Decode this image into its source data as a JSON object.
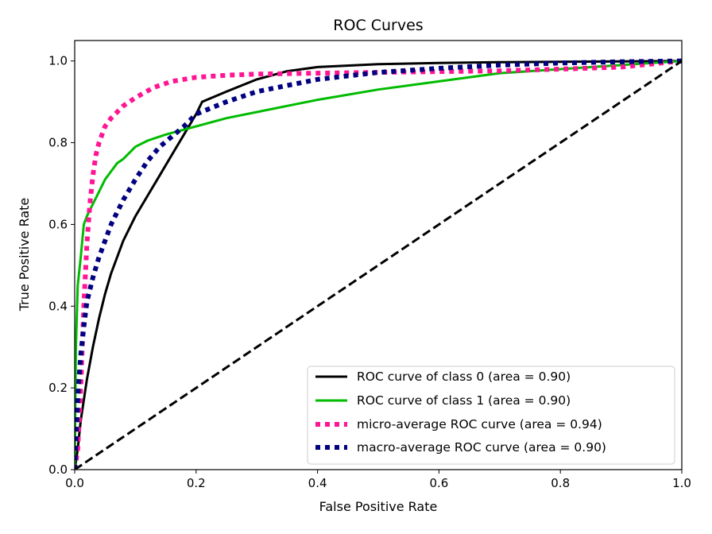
{
  "chart_data": {
    "type": "line",
    "title": "ROC Curves",
    "xlabel": "False Positive Rate",
    "ylabel": "True Positive Rate",
    "xlim": [
      0.0,
      1.0
    ],
    "ylim": [
      0.0,
      1.05
    ],
    "xticks": [
      0.0,
      0.2,
      0.4,
      0.6,
      0.8,
      1.0
    ],
    "xtick_labels": [
      "0.0",
      "0.2",
      "0.4",
      "0.6",
      "0.8",
      "1.0"
    ],
    "yticks": [
      0.0,
      0.2,
      0.4,
      0.6,
      0.8,
      1.0
    ],
    "ytick_labels": [
      "0.0",
      "0.2",
      "0.4",
      "0.6",
      "0.8",
      "1.0"
    ],
    "grid": false,
    "legend_position": "lower-right",
    "series": [
      {
        "name": "ROC curve of class 0 (area = 0.90)",
        "color": "#000000",
        "style": "solid",
        "x": [
          0.0,
          0.005,
          0.01,
          0.02,
          0.03,
          0.04,
          0.05,
          0.06,
          0.08,
          0.1,
          0.12,
          0.14,
          0.16,
          0.18,
          0.2,
          0.21,
          0.25,
          0.3,
          0.35,
          0.4,
          0.5,
          0.6,
          0.7,
          0.8,
          0.9,
          1.0
        ],
        "y": [
          0.0,
          0.05,
          0.12,
          0.22,
          0.3,
          0.37,
          0.43,
          0.48,
          0.56,
          0.62,
          0.67,
          0.72,
          0.77,
          0.82,
          0.87,
          0.9,
          0.925,
          0.955,
          0.975,
          0.985,
          0.992,
          0.995,
          0.997,
          0.998,
          0.999,
          1.0
        ]
      },
      {
        "name": "ROC curve of class 1 (area = 0.90)",
        "color": "#00bb00",
        "style": "solid",
        "x": [
          0.0,
          0.002,
          0.005,
          0.01,
          0.015,
          0.02,
          0.03,
          0.04,
          0.05,
          0.06,
          0.07,
          0.08,
          0.1,
          0.12,
          0.15,
          0.2,
          0.25,
          0.3,
          0.4,
          0.5,
          0.6,
          0.7,
          0.8,
          0.9,
          1.0
        ],
        "y": [
          0.0,
          0.3,
          0.45,
          0.52,
          0.6,
          0.62,
          0.65,
          0.68,
          0.71,
          0.73,
          0.75,
          0.76,
          0.79,
          0.805,
          0.82,
          0.84,
          0.86,
          0.875,
          0.905,
          0.93,
          0.95,
          0.97,
          0.98,
          0.99,
          1.0
        ]
      },
      {
        "name": "micro-average ROC curve (area = 0.94)",
        "color": "#ff1493",
        "style": "dotted",
        "x": [
          0.0,
          0.005,
          0.01,
          0.015,
          0.02,
          0.025,
          0.03,
          0.035,
          0.04,
          0.05,
          0.06,
          0.08,
          0.1,
          0.13,
          0.16,
          0.2,
          0.25,
          0.3,
          0.4,
          0.5,
          0.6,
          0.7,
          0.8,
          0.9,
          1.0
        ],
        "y": [
          0.0,
          0.05,
          0.2,
          0.4,
          0.55,
          0.65,
          0.72,
          0.77,
          0.8,
          0.84,
          0.86,
          0.89,
          0.91,
          0.935,
          0.95,
          0.96,
          0.965,
          0.968,
          0.97,
          0.972,
          0.974,
          0.976,
          0.98,
          0.985,
          1.0
        ]
      },
      {
        "name": "macro-average ROC curve (area = 0.90)",
        "color": "#000080",
        "style": "dotted",
        "x": [
          0.0,
          0.003,
          0.006,
          0.01,
          0.015,
          0.02,
          0.03,
          0.04,
          0.05,
          0.06,
          0.08,
          0.1,
          0.12,
          0.14,
          0.16,
          0.18,
          0.2,
          0.25,
          0.3,
          0.4,
          0.5,
          0.6,
          0.7,
          0.8,
          0.9,
          1.0
        ],
        "y": [
          0.0,
          0.1,
          0.2,
          0.28,
          0.35,
          0.41,
          0.47,
          0.52,
          0.56,
          0.6,
          0.66,
          0.71,
          0.755,
          0.79,
          0.815,
          0.84,
          0.87,
          0.9,
          0.925,
          0.955,
          0.972,
          0.982,
          0.99,
          0.995,
          0.998,
          1.0
        ]
      },
      {
        "name": "",
        "color": "#000000",
        "style": "dashed",
        "x": [
          0.0,
          1.0
        ],
        "y": [
          0.0,
          1.0
        ]
      }
    ]
  }
}
